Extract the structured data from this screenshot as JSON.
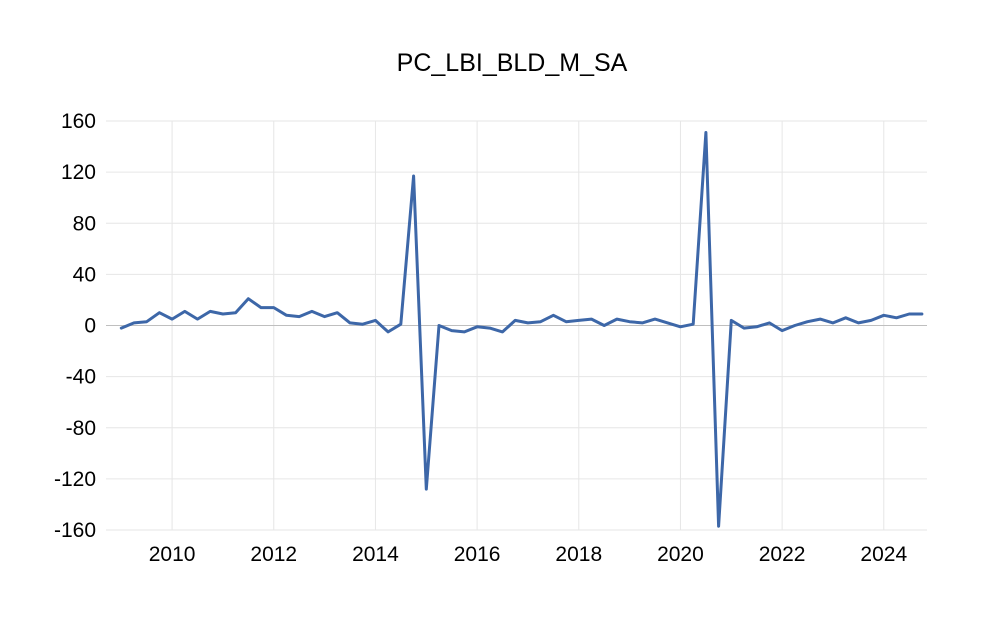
{
  "chart_data": {
    "type": "line",
    "title": "PC_LBI_BLD_M_SA",
    "xlabel": "",
    "ylabel": "",
    "xlim": [
      2008.7,
      2024.85
    ],
    "ylim": [
      -160,
      160
    ],
    "x_ticks": [
      2010,
      2012,
      2014,
      2016,
      2018,
      2020,
      2022,
      2024
    ],
    "x_tick_labels": [
      "2010",
      "2012",
      "2014",
      "2016",
      "2018",
      "2020",
      "2022",
      "2024"
    ],
    "y_ticks": [
      160,
      120,
      80,
      40,
      0,
      -40,
      -80,
      -120,
      -160
    ],
    "y_tick_labels": [
      "160",
      "120",
      "80",
      "40",
      "0",
      "-40",
      "-80",
      "-120",
      "-160"
    ],
    "grid": true,
    "legend": "none",
    "series": [
      {
        "color": "#3d67a8",
        "x": [
          2009.0,
          2009.25,
          2009.5,
          2009.75,
          2010.0,
          2010.25,
          2010.5,
          2010.75,
          2011.0,
          2011.25,
          2011.5,
          2011.75,
          2012.0,
          2012.25,
          2012.5,
          2012.75,
          2013.0,
          2013.25,
          2013.5,
          2013.75,
          2014.0,
          2014.25,
          2014.5,
          2014.75,
          2015.0,
          2015.25,
          2015.5,
          2015.75,
          2016.0,
          2016.25,
          2016.5,
          2016.75,
          2017.0,
          2017.25,
          2017.5,
          2017.75,
          2018.0,
          2018.25,
          2018.5,
          2018.75,
          2019.0,
          2019.25,
          2019.5,
          2019.75,
          2020.0,
          2020.25,
          2020.5,
          2020.75,
          2021.0,
          2021.25,
          2021.5,
          2021.75,
          2022.0,
          2022.25,
          2022.5,
          2022.75,
          2023.0,
          2023.25,
          2023.5,
          2023.75,
          2024.0,
          2024.25,
          2024.5,
          2024.75
        ],
        "values": [
          -2,
          2,
          3,
          10,
          5,
          11,
          5,
          11,
          9,
          10,
          21,
          14,
          14,
          8,
          7,
          11,
          7,
          10,
          2,
          1,
          4,
          -5,
          1,
          117,
          -128,
          0,
          -4,
          -5,
          -1,
          -2,
          -5,
          4,
          2,
          3,
          8,
          3,
          4,
          5,
          0,
          5,
          3,
          2,
          5,
          2,
          -1,
          1,
          151,
          -157,
          4,
          -2,
          -1,
          2,
          -4,
          0,
          3,
          5,
          2,
          6,
          2,
          4,
          8,
          6,
          9,
          9
        ]
      }
    ]
  }
}
